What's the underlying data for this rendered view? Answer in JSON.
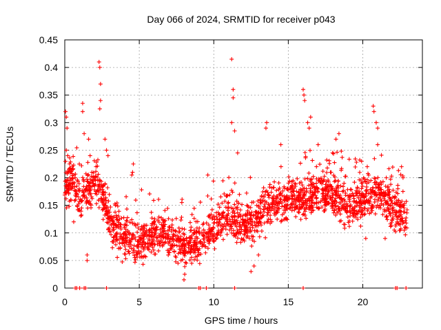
{
  "chart_data": {
    "type": "scatter",
    "title": "Day 066 of 2024, SRMTID for receiver p043",
    "xlabel": "GPS time / hours",
    "ylabel": "SRMTID / TECUs",
    "xlim": [
      0,
      24
    ],
    "ylim": [
      0,
      0.45
    ],
    "x_ticks": [
      0,
      5,
      10,
      15,
      20
    ],
    "x_tick_labels": [
      "0",
      "5",
      "10",
      "15",
      "20"
    ],
    "y_ticks": [
      0,
      0.05,
      0.1,
      0.15,
      0.2,
      0.25,
      0.3,
      0.35,
      0.4,
      0.45
    ],
    "y_tick_labels": [
      "0",
      "0.05",
      "0.1",
      "0.15",
      "0.2",
      "0.25",
      "0.3",
      "0.35",
      "0.4",
      "0.45"
    ],
    "grid": true,
    "marker": "plus",
    "marker_color": "#ff0000",
    "series": [
      {
        "name": "SRMTID",
        "trend": [
          [
            0.0,
            0.18
          ],
          [
            0.5,
            0.2
          ],
          [
            1.0,
            0.16
          ],
          [
            1.5,
            0.18
          ],
          [
            2.0,
            0.19
          ],
          [
            2.5,
            0.17
          ],
          [
            3.0,
            0.12
          ],
          [
            3.5,
            0.1
          ],
          [
            4.0,
            0.09
          ],
          [
            5.0,
            0.08
          ],
          [
            6.0,
            0.1
          ],
          [
            7.0,
            0.095
          ],
          [
            8.0,
            0.075
          ],
          [
            9.0,
            0.08
          ],
          [
            10.0,
            0.11
          ],
          [
            11.0,
            0.13
          ],
          [
            12.0,
            0.11
          ],
          [
            13.0,
            0.13
          ],
          [
            14.0,
            0.15
          ],
          [
            15.0,
            0.16
          ],
          [
            16.0,
            0.16
          ],
          [
            17.0,
            0.175
          ],
          [
            18.0,
            0.17
          ],
          [
            19.0,
            0.145
          ],
          [
            20.0,
            0.16
          ],
          [
            21.0,
            0.17
          ],
          [
            22.0,
            0.15
          ],
          [
            23.0,
            0.13
          ]
        ],
        "points": [
          [
            0.05,
            0.32
          ],
          [
            0.1,
            0.31
          ],
          [
            0.15,
            0.29
          ],
          [
            0.1,
            0.25
          ],
          [
            0.2,
            0.24
          ],
          [
            0.25,
            0.21
          ],
          [
            0.3,
            0.18
          ],
          [
            0.4,
            0.16
          ],
          [
            0.6,
            0.12
          ],
          [
            0.7,
            0.2
          ],
          [
            1.2,
            0.335
          ],
          [
            1.2,
            0.32
          ],
          [
            1.3,
            0.28
          ],
          [
            1.6,
            0.27
          ],
          [
            1.7,
            0.24
          ],
          [
            2.1,
            0.22
          ],
          [
            2.3,
            0.41
          ],
          [
            2.35,
            0.4
          ],
          [
            2.4,
            0.37
          ],
          [
            2.4,
            0.34
          ],
          [
            2.35,
            0.325
          ],
          [
            2.7,
            0.27
          ],
          [
            2.8,
            0.25
          ],
          [
            2.9,
            0.24
          ],
          [
            1.5,
            0.06
          ],
          [
            1.5,
            0.05
          ],
          [
            4.5,
            0.205
          ],
          [
            4.6,
            0.225
          ],
          [
            4.55,
            0.21
          ],
          [
            3.4,
            0.15
          ],
          [
            8.0,
            0.015
          ],
          [
            8.05,
            0.025
          ],
          [
            7.6,
            0.045
          ],
          [
            7.8,
            0.05
          ],
          [
            9.6,
            0.205
          ],
          [
            11.2,
            0.415
          ],
          [
            11.3,
            0.36
          ],
          [
            11.3,
            0.345
          ],
          [
            11.2,
            0.3
          ],
          [
            11.4,
            0.285
          ],
          [
            11.6,
            0.245
          ],
          [
            12.5,
            0.03
          ],
          [
            12.7,
            0.04
          ],
          [
            13.0,
            0.06
          ],
          [
            13.5,
            0.29
          ],
          [
            13.55,
            0.3
          ],
          [
            14.5,
            0.26
          ],
          [
            16.0,
            0.36
          ],
          [
            16.05,
            0.35
          ],
          [
            16.1,
            0.34
          ],
          [
            16.3,
            0.3
          ],
          [
            16.4,
            0.29
          ],
          [
            16.5,
            0.31
          ],
          [
            17.0,
            0.26
          ],
          [
            18.2,
            0.27
          ],
          [
            18.4,
            0.28
          ],
          [
            20.7,
            0.33
          ],
          [
            20.75,
            0.32
          ],
          [
            20.9,
            0.3
          ],
          [
            21.0,
            0.29
          ],
          [
            21.0,
            0.26
          ],
          [
            20.3,
            0.22
          ],
          [
            22.6,
            0.22
          ],
          [
            22.7,
            0.2
          ],
          [
            20.2,
            0.09
          ],
          [
            21.5,
            0.09
          ]
        ],
        "baseline_points": [
          0.7,
          0.8,
          1.0,
          1.3,
          1.4,
          2.8,
          9.0,
          9.1,
          9.5,
          11.4,
          16.0,
          22.2,
          22.3,
          22.9
        ],
        "random_seed": 66,
        "random_point_count": 2100,
        "random_spread": 0.028
      }
    ]
  }
}
